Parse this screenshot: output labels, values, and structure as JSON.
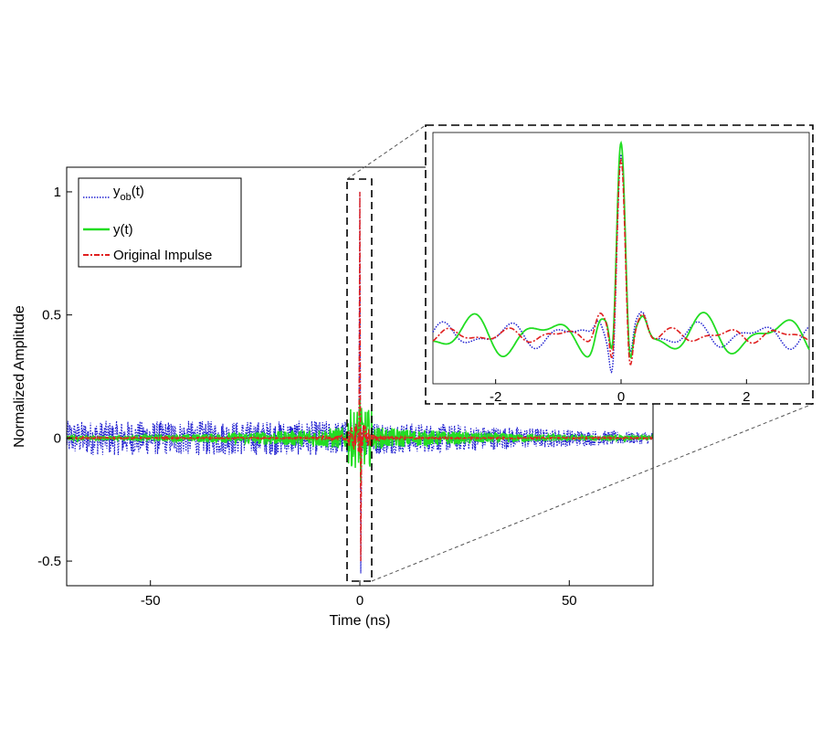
{
  "chart_data": [
    {
      "type": "line",
      "role": "main",
      "xlabel": "Time (ns)",
      "ylabel": "Normalized Amplitude",
      "xlim": [
        -70,
        70
      ],
      "ylim": [
        -0.6,
        1.1
      ],
      "xticks": [
        -50,
        0,
        50
      ],
      "yticks": [
        -0.5,
        0,
        0.5,
        1
      ],
      "xtick_labels": [
        "-50",
        "0",
        "50"
      ],
      "ytick_labels": [
        "-0.5",
        "0",
        "0.5",
        "1"
      ],
      "grid": false,
      "legend_position": "top-left",
      "series": [
        {
          "name": "y_ob(t)",
          "label_main": "y",
          "label_sub": "ob",
          "label_suffix": "(t)",
          "color": "#1f1fd0",
          "style": "dotted",
          "noise_amplitude": 0.07,
          "peak": 1.0,
          "trough": -0.55
        },
        {
          "name": "y(t)",
          "label_main": "y(t)",
          "color": "#22dd22",
          "style": "solid",
          "noise_amplitude": 0.05,
          "peak": 0.16,
          "trough": -0.18
        },
        {
          "name": "Original Impulse",
          "label_main": "Original Impulse",
          "color": "#e02020",
          "style": "dashdot",
          "noise_amplitude": 0.01,
          "peak": 1.0,
          "trough": -0.5
        }
      ]
    },
    {
      "type": "line",
      "role": "inset-zoom",
      "xlim": [
        -3,
        3
      ],
      "ylim": [
        -0.25,
        1.05
      ],
      "xticks": [
        -2,
        0,
        2
      ],
      "xtick_labels": [
        "-2",
        "0",
        "2"
      ],
      "zoom_region_x": [
        -1.5,
        1.5
      ],
      "series": [
        {
          "name": "y_ob(t)",
          "color": "#1f1fd0",
          "style": "dotted"
        },
        {
          "name": "y(t)",
          "color": "#22dd22",
          "style": "solid"
        },
        {
          "name": "Original Impulse",
          "color": "#e02020",
          "style": "dashdot"
        }
      ]
    }
  ]
}
